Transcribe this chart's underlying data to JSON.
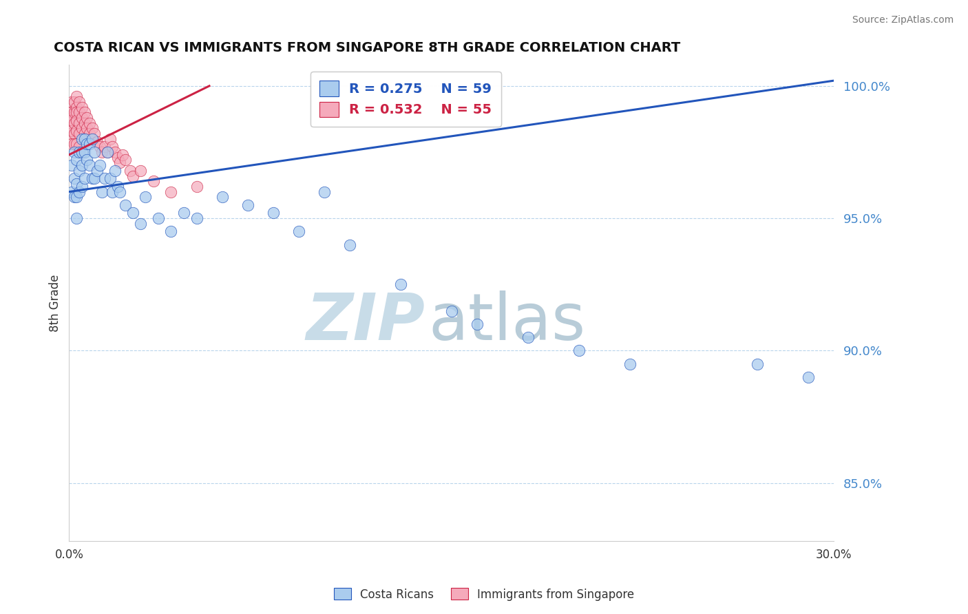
{
  "title": "COSTA RICAN VS IMMIGRANTS FROM SINGAPORE 8TH GRADE CORRELATION CHART",
  "source_text": "Source: ZipAtlas.com",
  "ylabel": "8th Grade",
  "xlim": [
    0.0,
    0.3
  ],
  "ylim": [
    0.828,
    1.008
  ],
  "yticks": [
    0.85,
    0.9,
    0.95,
    1.0
  ],
  "ytick_labels": [
    "85.0%",
    "90.0%",
    "95.0%",
    "100.0%"
  ],
  "xticks": [
    0.0,
    0.05,
    0.1,
    0.15,
    0.2,
    0.25,
    0.3
  ],
  "xtick_labels": [
    "0.0%",
    "",
    "",
    "",
    "",
    "",
    "30.0%"
  ],
  "blue_R": 0.275,
  "blue_N": 59,
  "pink_R": 0.532,
  "pink_N": 55,
  "blue_color": "#aaccee",
  "pink_color": "#f5aabb",
  "blue_line_color": "#2255bb",
  "pink_line_color": "#cc2244",
  "watermark_zip_color": "#c8dce8",
  "watermark_atlas_color": "#b8ccd8",
  "legend_label_blue": "Costa Ricans",
  "legend_label_pink": "Immigrants from Singapore",
  "blue_x": [
    0.001,
    0.001,
    0.002,
    0.002,
    0.002,
    0.003,
    0.003,
    0.003,
    0.003,
    0.004,
    0.004,
    0.004,
    0.005,
    0.005,
    0.005,
    0.005,
    0.006,
    0.006,
    0.006,
    0.007,
    0.007,
    0.008,
    0.008,
    0.009,
    0.009,
    0.01,
    0.01,
    0.011,
    0.012,
    0.013,
    0.014,
    0.015,
    0.016,
    0.017,
    0.018,
    0.019,
    0.02,
    0.022,
    0.025,
    0.028,
    0.03,
    0.035,
    0.04,
    0.045,
    0.05,
    0.06,
    0.07,
    0.08,
    0.09,
    0.1,
    0.11,
    0.13,
    0.15,
    0.16,
    0.18,
    0.2,
    0.22,
    0.27,
    0.29
  ],
  "blue_y": [
    0.97,
    0.96,
    0.975,
    0.965,
    0.958,
    0.972,
    0.963,
    0.958,
    0.95,
    0.975,
    0.968,
    0.96,
    0.98,
    0.975,
    0.97,
    0.962,
    0.98,
    0.975,
    0.965,
    0.978,
    0.972,
    0.978,
    0.97,
    0.98,
    0.965,
    0.975,
    0.965,
    0.968,
    0.97,
    0.96,
    0.965,
    0.975,
    0.965,
    0.96,
    0.968,
    0.962,
    0.96,
    0.955,
    0.952,
    0.948,
    0.958,
    0.95,
    0.945,
    0.952,
    0.95,
    0.958,
    0.955,
    0.952,
    0.945,
    0.96,
    0.94,
    0.925,
    0.915,
    0.91,
    0.905,
    0.9,
    0.895,
    0.895,
    0.89
  ],
  "pink_x": [
    0.0003,
    0.0004,
    0.0005,
    0.0005,
    0.001,
    0.001,
    0.001,
    0.001,
    0.001,
    0.002,
    0.002,
    0.002,
    0.002,
    0.002,
    0.003,
    0.003,
    0.003,
    0.003,
    0.003,
    0.003,
    0.004,
    0.004,
    0.004,
    0.004,
    0.004,
    0.005,
    0.005,
    0.005,
    0.006,
    0.006,
    0.006,
    0.007,
    0.007,
    0.008,
    0.008,
    0.009,
    0.01,
    0.011,
    0.012,
    0.013,
    0.014,
    0.015,
    0.016,
    0.017,
    0.018,
    0.019,
    0.02,
    0.021,
    0.022,
    0.024,
    0.025,
    0.028,
    0.033,
    0.04,
    0.05
  ],
  "pink_y": [
    0.99,
    0.988,
    0.985,
    0.982,
    0.994,
    0.99,
    0.987,
    0.983,
    0.978,
    0.994,
    0.99,
    0.986,
    0.982,
    0.978,
    0.996,
    0.992,
    0.99,
    0.987,
    0.983,
    0.978,
    0.994,
    0.99,
    0.986,
    0.982,
    0.977,
    0.992,
    0.988,
    0.984,
    0.99,
    0.986,
    0.982,
    0.988,
    0.984,
    0.986,
    0.982,
    0.984,
    0.982,
    0.979,
    0.977,
    0.975,
    0.977,
    0.975,
    0.98,
    0.977,
    0.975,
    0.973,
    0.971,
    0.974,
    0.972,
    0.968,
    0.966,
    0.968,
    0.964,
    0.96,
    0.962
  ],
  "blue_trend_x": [
    0.0,
    0.3
  ],
  "blue_trend_y": [
    0.96,
    1.002
  ],
  "pink_trend_x": [
    0.0,
    0.055
  ],
  "pink_trend_y": [
    0.974,
    1.0
  ]
}
